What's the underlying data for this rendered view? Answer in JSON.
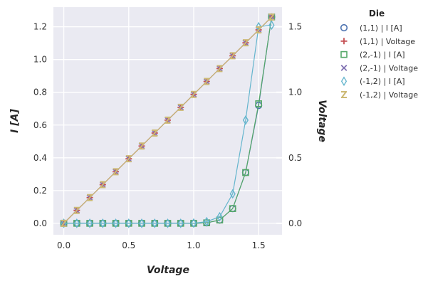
{
  "chart_data": {
    "type": "line",
    "xlabel": "Voltage",
    "ylabel": "I [A]",
    "y2label": "Voltage",
    "xlim": [
      -0.08,
      1.68
    ],
    "ylim": [
      -0.07,
      1.32
    ],
    "y2lim": [
      -0.07,
      1.32
    ],
    "xticks": [
      0.0,
      0.5,
      1.0,
      1.5
    ],
    "xtick_labels": [
      "0.0",
      "0.5",
      "1.0",
      "1.5"
    ],
    "yticks": [
      0.0,
      0.2,
      0.4,
      0.6,
      0.8,
      1.0,
      1.2
    ],
    "ytick_labels": [
      "0.0",
      "0.2",
      "0.4",
      "0.6",
      "0.8",
      "1.0",
      "1.2"
    ],
    "y2ticks": [
      0.0,
      0.4,
      0.8,
      1.2
    ],
    "y2tick_labels": [
      "0.0",
      "0.5",
      "1.0",
      "1.5"
    ],
    "grid": true,
    "legend_title": "Die",
    "legend_position": "outside-right",
    "x": [
      0.0,
      0.1,
      0.2,
      0.3,
      0.4,
      0.5,
      0.6,
      0.7,
      0.8,
      0.9,
      1.0,
      1.1,
      1.2,
      1.3,
      1.4,
      1.5,
      1.6
    ],
    "series": [
      {
        "name": "(1,1) | I [A]",
        "marker": "circle",
        "color": "#4c72b0",
        "values": [
          0.0,
          0.0,
          0.0,
          0.0,
          0.0,
          0.0,
          0.0,
          0.0,
          0.0,
          0.0,
          0.0,
          0.003,
          0.02,
          0.09,
          0.31,
          0.72,
          1.26
        ]
      },
      {
        "name": "(1,1) | Voltage",
        "marker": "plus",
        "color": "#c44e52",
        "values": [
          0.0,
          0.079,
          0.157,
          0.236,
          0.315,
          0.394,
          0.472,
          0.551,
          0.63,
          0.708,
          0.787,
          0.866,
          0.945,
          1.023,
          1.102,
          1.181,
          1.26
        ]
      },
      {
        "name": "(2,-1) | I [A]",
        "marker": "square",
        "color": "#55a868",
        "values": [
          0.0,
          0.0,
          0.0,
          0.0,
          0.0,
          0.0,
          0.0,
          0.0,
          0.0,
          0.0,
          0.0,
          0.003,
          0.02,
          0.09,
          0.31,
          0.73,
          1.26
        ]
      },
      {
        "name": "(2,-1) | Voltage",
        "marker": "x",
        "color": "#8172b2",
        "values": [
          0.0,
          0.079,
          0.157,
          0.236,
          0.315,
          0.394,
          0.472,
          0.551,
          0.63,
          0.708,
          0.787,
          0.866,
          0.945,
          1.023,
          1.102,
          1.181,
          1.26
        ]
      },
      {
        "name": "(-1,2) | I [A]",
        "marker": "thin_diamond",
        "color": "#64b5cd",
        "values": [
          0.0,
          0.0,
          0.0,
          0.0,
          0.0,
          0.0,
          0.0,
          0.0,
          0.0,
          0.0,
          0.001,
          0.01,
          0.04,
          0.18,
          0.63,
          1.2,
          1.21
        ]
      },
      {
        "name": "(-1,2) | Voltage",
        "marker": "tri",
        "color": "#ccb974",
        "values": [
          0.0,
          0.079,
          0.157,
          0.236,
          0.315,
          0.394,
          0.472,
          0.551,
          0.63,
          0.708,
          0.787,
          0.866,
          0.945,
          1.023,
          1.102,
          1.181,
          1.26
        ]
      }
    ],
    "colors": {
      "plot_bg": "#eaeaf2",
      "grid": "#ffffff",
      "axis_text": "#333333"
    }
  }
}
